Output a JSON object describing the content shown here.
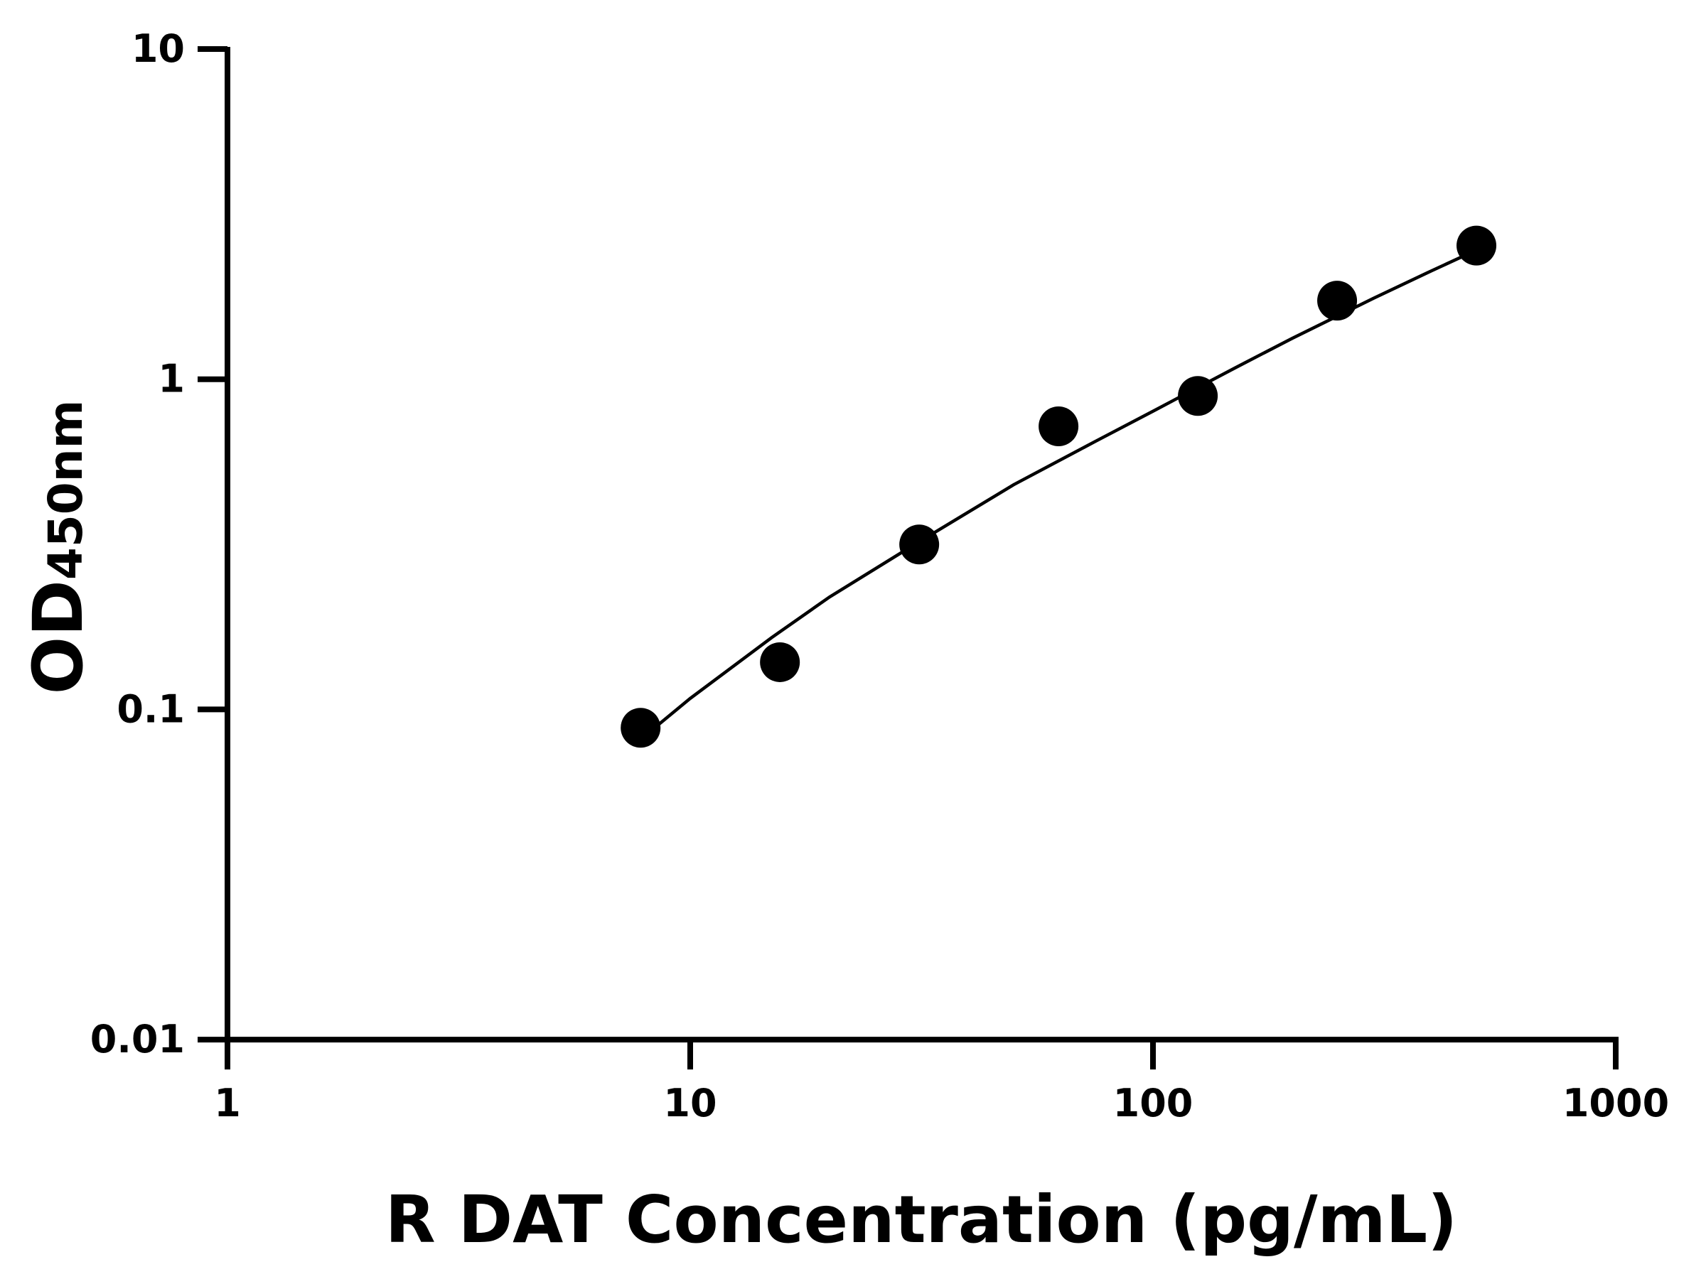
{
  "chart_data": {
    "type": "scatter",
    "title": "",
    "xlabel": "R DAT Concentration (pg/mL)",
    "ylabel_main": "OD",
    "ylabel_sub": "450nm",
    "x_scale": "log",
    "y_scale": "log",
    "xlim": [
      1,
      1000
    ],
    "ylim": [
      0.01,
      10
    ],
    "x_ticks": [
      1,
      10,
      100,
      1000
    ],
    "x_tick_labels": [
      "1",
      "10",
      "100",
      "1000"
    ],
    "y_ticks": [
      0.01,
      0.1,
      1,
      10
    ],
    "y_tick_labels": [
      "0.01",
      "0.1",
      "1",
      "10"
    ],
    "grid": false,
    "legend": "none",
    "series": [
      {
        "x": [
          7.8125,
          15.625,
          31.25,
          62.5,
          125,
          250,
          500
        ],
        "y": [
          0.088,
          0.139,
          0.316,
          0.72,
          0.89,
          1.73,
          2.54
        ],
        "marker": "filled-circle",
        "color": "#000000"
      }
    ],
    "fit_curve": {
      "x": [
        7.8,
        10,
        15,
        20,
        30,
        50,
        75,
        100,
        150,
        200,
        300,
        400,
        500
      ],
      "y": [
        0.081,
        0.108,
        0.165,
        0.219,
        0.311,
        0.479,
        0.648,
        0.8,
        1.08,
        1.33,
        1.76,
        2.13,
        2.46
      ],
      "color": "#000000"
    }
  }
}
